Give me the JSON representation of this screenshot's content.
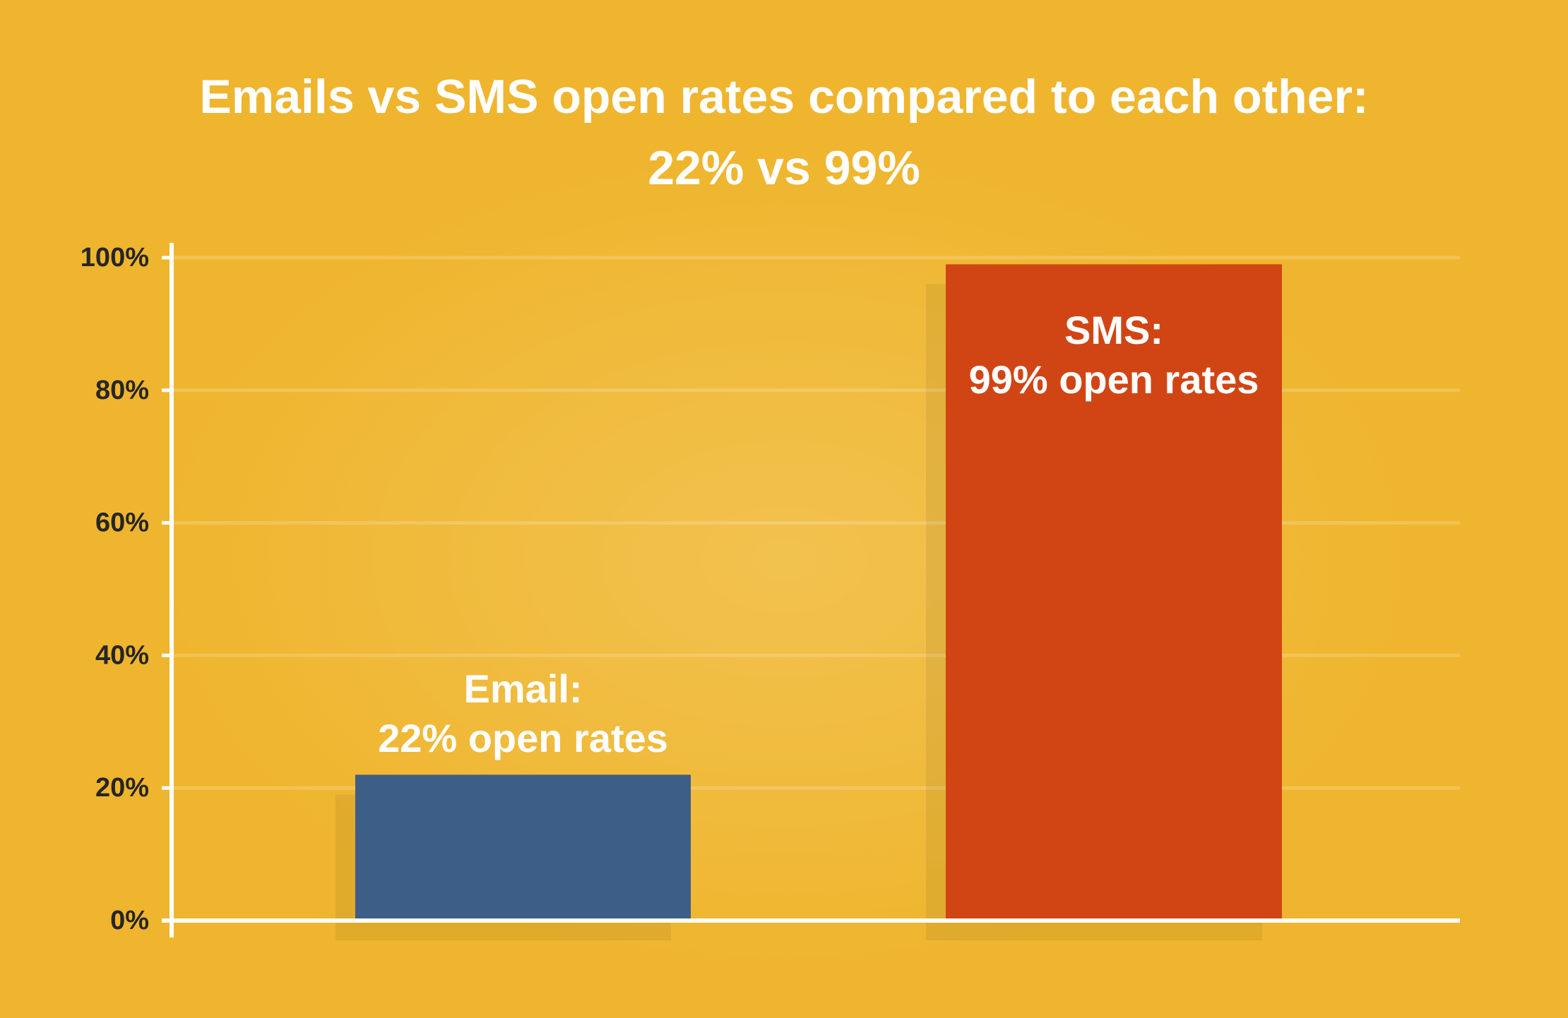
{
  "chart_data": {
    "type": "bar",
    "title": "Emails vs SMS open rates compared to each other:",
    "subtitle": "22% vs 99%",
    "categories": [
      "Email:",
      "SMS:"
    ],
    "values": [
      22,
      99
    ],
    "value_labels": [
      "22% open rates",
      "99% open rates"
    ],
    "colors": [
      "#3d5e87",
      "#d14514"
    ],
    "ylim": [
      0,
      100
    ],
    "yticks": [
      {
        "value": 0,
        "label": "0%"
      },
      {
        "value": 20,
        "label": "20%"
      },
      {
        "value": 40,
        "label": "40%"
      },
      {
        "value": 60,
        "label": "60%"
      },
      {
        "value": 80,
        "label": "80%"
      },
      {
        "value": 100,
        "label": "100%"
      }
    ],
    "grid": true
  }
}
